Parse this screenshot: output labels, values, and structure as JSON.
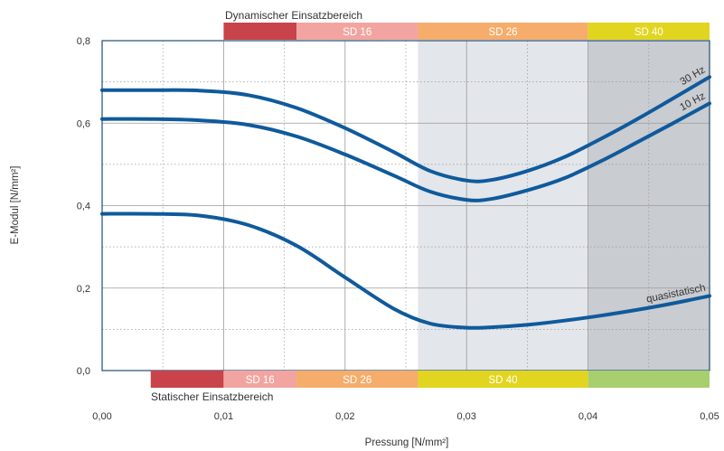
{
  "chart_data": {
    "type": "line",
    "title": "",
    "xlabel": "Pressung [N/mm²]",
    "ylabel": "E-Modul [N/mm²]",
    "xlim": [
      0,
      0.05
    ],
    "ylim": [
      0,
      0.8
    ],
    "x_ticks": [
      "0,00",
      "0,01",
      "0,02",
      "0,03",
      "0,04",
      "0,05"
    ],
    "y_ticks": [
      "0,0",
      "0,2",
      "0,4",
      "0,6",
      "0,8"
    ],
    "grid": "dotted",
    "shaded_regions": [
      {
        "x_from": 0.026,
        "x_to": 0.04,
        "color": "#e3e6ea"
      },
      {
        "x_from": 0.04,
        "x_to": 0.05,
        "color": "#c9ccd0"
      }
    ],
    "series": [
      {
        "name": "30 Hz",
        "color": "#0f5a9c",
        "x": [
          0.0,
          0.004,
          0.008,
          0.012,
          0.016,
          0.02,
          0.024,
          0.027,
          0.03,
          0.032,
          0.035,
          0.038,
          0.041,
          0.044,
          0.047,
          0.05
        ],
        "y": [
          0.68,
          0.68,
          0.679,
          0.668,
          0.637,
          0.588,
          0.53,
          0.484,
          0.461,
          0.462,
          0.484,
          0.517,
          0.561,
          0.609,
          0.66,
          0.712
        ]
      },
      {
        "name": "10 Hz",
        "color": "#0f5a9c",
        "x": [
          0.0,
          0.004,
          0.008,
          0.012,
          0.016,
          0.02,
          0.024,
          0.027,
          0.03,
          0.032,
          0.035,
          0.038,
          0.041,
          0.044,
          0.047,
          0.05
        ],
        "y": [
          0.61,
          0.61,
          0.607,
          0.596,
          0.568,
          0.524,
          0.473,
          0.434,
          0.414,
          0.416,
          0.437,
          0.466,
          0.507,
          0.553,
          0.6,
          0.648
        ]
      },
      {
        "name": "quasistatisch",
        "color": "#0f5a9c",
        "x": [
          0.0,
          0.004,
          0.008,
          0.012,
          0.016,
          0.02,
          0.024,
          0.027,
          0.03,
          0.032,
          0.035,
          0.038,
          0.041,
          0.044,
          0.047,
          0.05
        ],
        "y": [
          0.38,
          0.38,
          0.376,
          0.353,
          0.303,
          0.226,
          0.15,
          0.114,
          0.104,
          0.105,
          0.111,
          0.121,
          0.133,
          0.147,
          0.163,
          0.181
        ]
      }
    ],
    "dynamic_range": {
      "title": "Dynamischer Einsatzbereich",
      "bands": [
        {
          "label": "",
          "x_from": 0.01,
          "x_to": 0.016,
          "color": "#c9434a"
        },
        {
          "label": "SD 16",
          "x_from": 0.016,
          "x_to": 0.026,
          "color": "#f2a5a0"
        },
        {
          "label": "SD 26",
          "x_from": 0.026,
          "x_to": 0.04,
          "color": "#f6ad6b"
        },
        {
          "label": "SD 40",
          "x_from": 0.04,
          "x_to": 0.05,
          "color": "#e2d51f"
        }
      ]
    },
    "static_range": {
      "title": "Statischer Einsatzbereich",
      "bands": [
        {
          "label": "",
          "x_from": 0.004,
          "x_to": 0.01,
          "color": "#c9434a"
        },
        {
          "label": "SD 16",
          "x_from": 0.01,
          "x_to": 0.016,
          "color": "#f2a5a0"
        },
        {
          "label": "SD 26",
          "x_from": 0.016,
          "x_to": 0.026,
          "color": "#f6ad6b"
        },
        {
          "label": "SD 40",
          "x_from": 0.026,
          "x_to": 0.04,
          "color": "#e2d51f"
        },
        {
          "label": "",
          "x_from": 0.04,
          "x_to": 0.05,
          "color": "#a8cf6e"
        }
      ]
    }
  }
}
